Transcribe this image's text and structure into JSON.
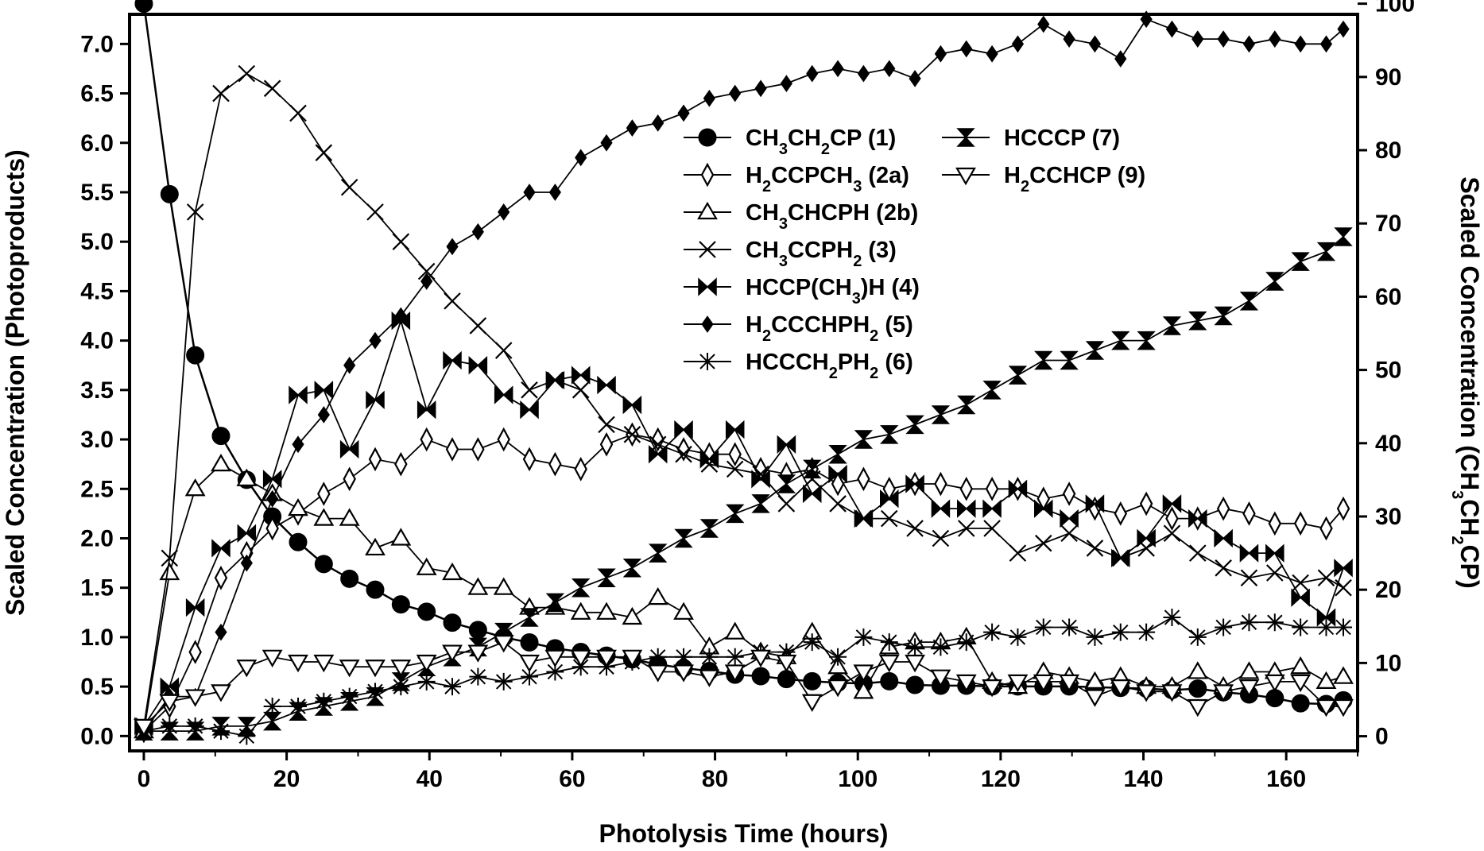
{
  "chart_data": {
    "type": "line",
    "xlabel": "Photolysis Time (hours)",
    "ylabel": "Scaled Concentration (Photoproducts)",
    "y2label_parts": [
      "Scaled Concentration (CH",
      "3",
      "CH",
      "2",
      "CP)"
    ],
    "xlim": [
      -2,
      170
    ],
    "ylim": [
      -0.15,
      7.3
    ],
    "y2lim": [
      -2.0,
      98.55
    ],
    "x_ticks": [
      0,
      20,
      40,
      60,
      80,
      100,
      120,
      140,
      160
    ],
    "x_tick_labels": [
      "0",
      "20",
      "40",
      "60",
      "80",
      "100",
      "120",
      "140",
      "160"
    ],
    "y_ticks": [
      0.0,
      0.5,
      1.0,
      1.5,
      2.0,
      2.5,
      3.0,
      3.5,
      4.0,
      4.5,
      5.0,
      5.5,
      6.0,
      6.5,
      7.0
    ],
    "y_tick_labels": [
      "0.0",
      "0.5",
      "1.0",
      "1.5",
      "2.0",
      "2.5",
      "3.0",
      "3.5",
      "4.0",
      "4.5",
      "5.0",
      "5.5",
      "6.0",
      "6.5",
      "7.0"
    ],
    "y2_ticks": [
      0,
      10,
      20,
      30,
      40,
      50,
      60,
      70,
      80,
      90,
      100
    ],
    "y2_tick_labels": [
      "0",
      "10",
      "20",
      "30",
      "40",
      "50",
      "60",
      "70",
      "80",
      "90",
      "100"
    ],
    "grid": false,
    "legend_position": "top-center",
    "series": [
      {
        "key": "s1",
        "name_parts": [
          "CH",
          "3",
          "CH",
          "2",
          "CP (1)"
        ],
        "marker": "filled-circle",
        "axis": "right",
        "x": [
          0,
          3.6,
          7.2,
          10.8,
          14.4,
          18,
          21.6,
          25.2,
          28.8,
          32.4,
          36,
          39.6,
          43.2,
          46.8,
          50.4,
          54,
          57.6,
          61.2,
          64.8,
          68.4,
          72,
          75.6,
          79.2,
          82.8,
          86.4,
          90,
          93.6,
          97.2,
          100.8,
          104.4,
          108,
          111.6,
          115.2,
          118.8,
          122.4,
          126,
          129.6,
          133.2,
          136.8,
          140.4,
          144,
          147.6,
          151.2,
          154.8,
          158.4,
          162,
          165.6,
          168
        ],
        "y": [
          100,
          74,
          52,
          41,
          35,
          30,
          26.5,
          23.5,
          21.5,
          20,
          18,
          17,
          15.5,
          14.5,
          13.5,
          12.8,
          12,
          11.5,
          11,
          10.5,
          9.8,
          9.3,
          8.9,
          8.4,
          8.2,
          7.8,
          7.5,
          7.3,
          7.2,
          7.5,
          7.0,
          6.9,
          6.9,
          6.8,
          6.8,
          6.8,
          6.8,
          6.7,
          6.6,
          6.5,
          6.3,
          6.5,
          6.0,
          5.7,
          5.2,
          4.5,
          4.4,
          4.9
        ]
      },
      {
        "key": "s2a",
        "name_parts": [
          "H",
          "2",
          "CCPCH",
          "3",
          " (2a)"
        ],
        "marker": "open-diamond",
        "axis": "left",
        "x": [
          0,
          3.6,
          7.2,
          10.8,
          14.4,
          18,
          21.6,
          25.2,
          28.8,
          32.4,
          36,
          39.6,
          43.2,
          46.8,
          50.4,
          54,
          57.6,
          61.2,
          64.8,
          68.4,
          72,
          75.6,
          79.2,
          82.8,
          86.4,
          90,
          93.6,
          97.2,
          100.8,
          104.4,
          108,
          111.6,
          115.2,
          118.8,
          122.4,
          126,
          129.6,
          133.2,
          136.8,
          140.4,
          144,
          147.6,
          151.2,
          154.8,
          158.4,
          162,
          165.6,
          168
        ],
        "y": [
          0.05,
          0.3,
          0.85,
          1.6,
          1.85,
          2.1,
          2.25,
          2.45,
          2.6,
          2.8,
          2.75,
          3.0,
          2.9,
          2.9,
          3.0,
          2.8,
          2.75,
          2.7,
          2.95,
          3.05,
          3.0,
          2.9,
          2.85,
          2.85,
          2.7,
          2.65,
          2.7,
          2.55,
          2.6,
          2.5,
          2.55,
          2.55,
          2.5,
          2.5,
          2.5,
          2.4,
          2.45,
          2.3,
          2.25,
          2.35,
          2.2,
          2.2,
          2.3,
          2.25,
          2.15,
          2.15,
          2.1,
          2.3
        ]
      },
      {
        "key": "s2b",
        "name_parts": [
          "CH",
          "3",
          "CHCPH (2b)"
        ],
        "marker": "open-triangle-up",
        "axis": "left",
        "x": [
          0,
          3.6,
          7.2,
          10.8,
          14.4,
          18,
          21.6,
          25.2,
          28.8,
          32.4,
          36,
          39.6,
          43.2,
          46.8,
          50.4,
          54,
          57.6,
          61.2,
          64.8,
          68.4,
          72,
          75.6,
          79.2,
          82.8,
          86.4,
          90,
          93.6,
          97.2,
          100.8,
          104.4,
          108,
          111.6,
          115.2,
          118.8,
          122.4,
          126,
          129.6,
          133.2,
          136.8,
          140.4,
          144,
          147.6,
          151.2,
          154.8,
          158.4,
          162,
          165.6,
          168
        ],
        "y": [
          0.05,
          1.65,
          2.5,
          2.75,
          2.6,
          2.45,
          2.3,
          2.2,
          2.2,
          1.9,
          2.0,
          1.7,
          1.65,
          1.5,
          1.5,
          1.3,
          1.3,
          1.25,
          1.25,
          1.2,
          1.4,
          1.25,
          0.9,
          1.05,
          0.85,
          0.8,
          1.05,
          0.7,
          0.45,
          0.9,
          0.95,
          0.95,
          1.0,
          0.55,
          0.5,
          0.65,
          0.6,
          0.55,
          0.6,
          0.5,
          0.5,
          0.65,
          0.5,
          0.65,
          0.65,
          0.7,
          0.55,
          0.6
        ]
      },
      {
        "key": "s3",
        "name_parts": [
          "CH",
          "3",
          "CCPH",
          "2",
          " (3)"
        ],
        "marker": "x",
        "axis": "left",
        "x": [
          0,
          3.6,
          7.2,
          10.8,
          14.4,
          18,
          21.6,
          25.2,
          28.8,
          32.4,
          36,
          39.6,
          43.2,
          46.8,
          50.4,
          54,
          57.6,
          61.2,
          64.8,
          68.4,
          72,
          75.6,
          79.2,
          82.8,
          86.4,
          90,
          93.6,
          97.2,
          100.8,
          104.4,
          108,
          111.6,
          115.2,
          118.8,
          122.4,
          126,
          129.6,
          133.2,
          136.8,
          140.4,
          144,
          147.6,
          151.2,
          154.8,
          158.4,
          162,
          165.6,
          168
        ],
        "y": [
          0.1,
          1.8,
          5.3,
          6.5,
          6.7,
          6.55,
          6.3,
          5.9,
          5.55,
          5.3,
          5.0,
          4.7,
          4.4,
          4.15,
          3.9,
          3.5,
          3.6,
          3.5,
          3.15,
          3.05,
          2.95,
          2.85,
          2.75,
          2.7,
          2.65,
          2.35,
          2.6,
          2.35,
          2.2,
          2.2,
          2.1,
          2.0,
          2.1,
          2.1,
          1.85,
          1.95,
          2.05,
          1.9,
          1.8,
          1.9,
          2.05,
          1.85,
          1.7,
          1.6,
          1.65,
          1.55,
          1.6,
          1.5
        ]
      },
      {
        "key": "s4",
        "name_parts": [
          "HCCP(CH",
          "3",
          ")H (4)"
        ],
        "marker": "bowtie-h",
        "axis": "left",
        "x": [
          0,
          3.6,
          7.2,
          10.8,
          14.4,
          18,
          21.6,
          25.2,
          28.8,
          32.4,
          36,
          39.6,
          43.2,
          46.8,
          50.4,
          54,
          57.6,
          61.2,
          64.8,
          68.4,
          72,
          75.6,
          79.2,
          82.8,
          86.4,
          90,
          93.6,
          97.2,
          100.8,
          104.4,
          108,
          111.6,
          115.2,
          118.8,
          122.4,
          126,
          129.6,
          133.2,
          136.8,
          140.4,
          144,
          147.6,
          151.2,
          154.8,
          158.4,
          162,
          165.6,
          168
        ],
        "y": [
          0.1,
          0.5,
          1.3,
          1.9,
          2.05,
          2.6,
          3.45,
          3.5,
          2.9,
          3.4,
          4.2,
          3.3,
          3.8,
          3.75,
          3.45,
          3.3,
          3.6,
          3.65,
          3.55,
          3.35,
          2.85,
          3.1,
          2.8,
          3.1,
          2.6,
          2.95,
          2.45,
          2.65,
          2.2,
          2.4,
          2.55,
          2.3,
          2.3,
          2.3,
          2.5,
          2.3,
          2.2,
          2.35,
          1.8,
          2.0,
          2.35,
          2.2,
          2.0,
          1.85,
          1.85,
          1.4,
          1.2,
          1.7
        ]
      },
      {
        "key": "s5",
        "name_parts": [
          "H",
          "2",
          "CCCHPH",
          "2",
          " (5)"
        ],
        "marker": "filled-diamond",
        "axis": "left",
        "x": [
          0,
          3.6,
          7.2,
          10.8,
          14.4,
          18,
          21.6,
          25.2,
          28.8,
          32.4,
          36,
          39.6,
          43.2,
          46.8,
          50.4,
          54,
          57.6,
          61.2,
          64.8,
          68.4,
          72,
          75.6,
          79.2,
          82.8,
          86.4,
          90,
          93.6,
          97.2,
          100.8,
          104.4,
          108,
          111.6,
          115.2,
          118.8,
          122.4,
          126,
          129.6,
          133.2,
          136.8,
          140.4,
          144,
          147.6,
          151.2,
          154.8,
          158.4,
          162,
          165.6,
          168
        ],
        "y": [
          0.05,
          0.4,
          0.4,
          1.05,
          1.75,
          2.4,
          2.95,
          3.25,
          3.75,
          4.0,
          4.25,
          4.6,
          4.95,
          5.1,
          5.3,
          5.5,
          5.5,
          5.85,
          6.0,
          6.15,
          6.2,
          6.3,
          6.45,
          6.5,
          6.55,
          6.6,
          6.7,
          6.75,
          6.7,
          6.75,
          6.65,
          6.9,
          6.95,
          6.9,
          7.0,
          7.2,
          7.05,
          7.0,
          6.85,
          7.25,
          7.15,
          7.05,
          7.05,
          7.0,
          7.05,
          7.0,
          7.0,
          7.15
        ]
      },
      {
        "key": "s6",
        "name_parts": [
          "HCCCH",
          "2",
          "PH",
          "2",
          " (6)"
        ],
        "marker": "asterisk",
        "axis": "left",
        "x": [
          0,
          3.6,
          7.2,
          10.8,
          14.4,
          18,
          21.6,
          25.2,
          28.8,
          32.4,
          36,
          39.6,
          43.2,
          46.8,
          50.4,
          54,
          57.6,
          61.2,
          64.8,
          68.4,
          72,
          75.6,
          79.2,
          82.8,
          86.4,
          90,
          93.6,
          97.2,
          100.8,
          104.4,
          108,
          111.6,
          115.2,
          118.8,
          122.4,
          126,
          129.6,
          133.2,
          136.8,
          140.4,
          144,
          147.6,
          151.2,
          154.8,
          158.4,
          162,
          165.6,
          168
        ],
        "y": [
          0.05,
          0.1,
          0.1,
          0.05,
          0.0,
          0.3,
          0.3,
          0.35,
          0.4,
          0.45,
          0.5,
          0.55,
          0.5,
          0.6,
          0.55,
          0.6,
          0.65,
          0.7,
          0.7,
          0.75,
          0.8,
          0.8,
          0.8,
          0.8,
          0.85,
          0.85,
          0.95,
          0.8,
          1.0,
          0.95,
          0.9,
          0.9,
          0.95,
          1.05,
          1.0,
          1.1,
          1.1,
          1.0,
          1.05,
          1.05,
          1.2,
          1.0,
          1.1,
          1.15,
          1.15,
          1.1,
          1.1,
          1.1
        ]
      },
      {
        "key": "s7",
        "name_parts": [
          "HCCCP (7)"
        ],
        "marker": "bowtie-v",
        "axis": "left",
        "x": [
          0,
          3.6,
          7.2,
          10.8,
          14.4,
          18,
          21.6,
          25.2,
          28.8,
          32.4,
          36,
          39.6,
          43.2,
          46.8,
          50.4,
          54,
          57.6,
          61.2,
          64.8,
          68.4,
          72,
          75.6,
          79.2,
          82.8,
          86.4,
          90,
          93.6,
          97.2,
          100.8,
          104.4,
          108,
          111.6,
          115.2,
          118.8,
          122.4,
          126,
          129.6,
          133.2,
          136.8,
          140.4,
          144,
          147.6,
          151.2,
          154.8,
          158.4,
          162,
          165.6,
          168
        ],
        "y": [
          0.05,
          0.05,
          0.05,
          0.1,
          0.1,
          0.15,
          0.25,
          0.3,
          0.35,
          0.4,
          0.55,
          0.7,
          0.8,
          0.9,
          1.05,
          1.2,
          1.35,
          1.5,
          1.6,
          1.7,
          1.85,
          2.0,
          2.1,
          2.25,
          2.35,
          2.55,
          2.7,
          2.85,
          3.0,
          3.05,
          3.15,
          3.25,
          3.35,
          3.5,
          3.65,
          3.8,
          3.8,
          3.9,
          4.0,
          4.0,
          4.15,
          4.2,
          4.25,
          4.4,
          4.6,
          4.8,
          4.9,
          5.05
        ]
      },
      {
        "key": "s9",
        "name_parts": [
          "H",
          "2",
          "CCHCP (9)"
        ],
        "marker": "open-triangle-down",
        "axis": "left",
        "x": [
          0,
          3.6,
          7.2,
          10.8,
          14.4,
          18,
          21.6,
          25.2,
          28.8,
          32.4,
          36,
          39.6,
          43.2,
          46.8,
          50.4,
          54,
          57.6,
          61.2,
          64.8,
          68.4,
          72,
          75.6,
          79.2,
          82.8,
          86.4,
          90,
          93.6,
          97.2,
          100.8,
          104.4,
          108,
          111.6,
          115.2,
          118.8,
          122.4,
          126,
          129.6,
          133.2,
          136.8,
          140.4,
          144,
          147.6,
          151.2,
          154.8,
          158.4,
          162,
          165.6,
          168
        ],
        "y": [
          0.1,
          0.35,
          0.4,
          0.45,
          0.7,
          0.8,
          0.75,
          0.75,
          0.7,
          0.7,
          0.7,
          0.75,
          0.85,
          0.85,
          0.95,
          0.75,
          0.8,
          0.8,
          0.8,
          0.8,
          0.65,
          0.65,
          0.6,
          0.65,
          0.8,
          0.75,
          0.35,
          0.5,
          0.65,
          0.75,
          0.75,
          0.6,
          0.55,
          0.5,
          0.55,
          0.55,
          0.55,
          0.4,
          0.5,
          0.45,
          0.45,
          0.3,
          0.45,
          0.5,
          0.55,
          0.55,
          0.3,
          0.3
        ]
      }
    ],
    "legend": {
      "col1": [
        "s1",
        "s2a",
        "s2b",
        "s3",
        "s4",
        "s5",
        "s6"
      ],
      "col2": [
        "s7",
        "s9"
      ]
    }
  }
}
